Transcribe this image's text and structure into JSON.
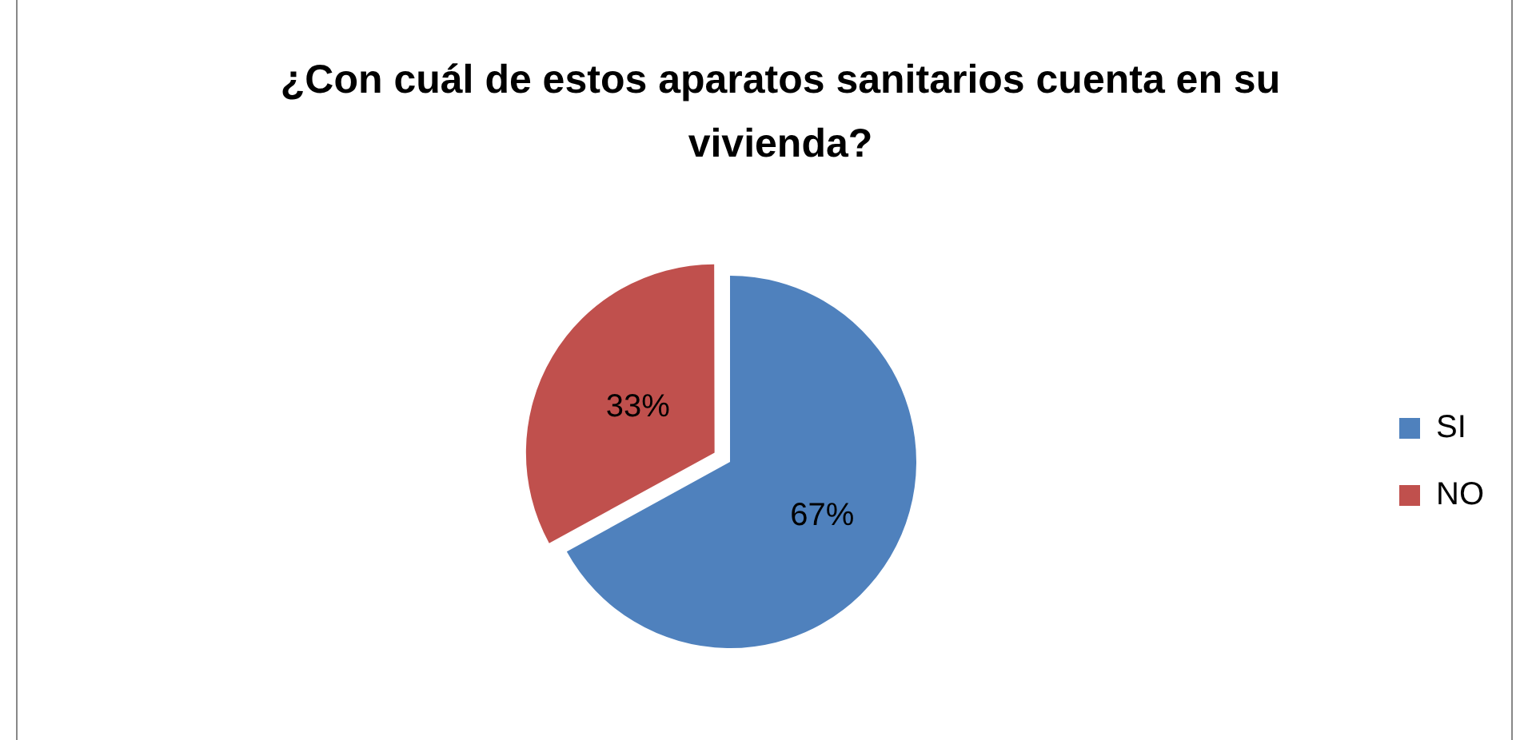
{
  "chart_data": {
    "type": "pie",
    "title": "¿Con cuál de estos aparatos sanitarios cuenta en su vivienda?",
    "categories": [
      "SI",
      "NO"
    ],
    "values": [
      67,
      33
    ],
    "colors": [
      "#4f81bd",
      "#c0504d"
    ],
    "value_labels": [
      "67%",
      "33%"
    ],
    "legend": "right"
  }
}
